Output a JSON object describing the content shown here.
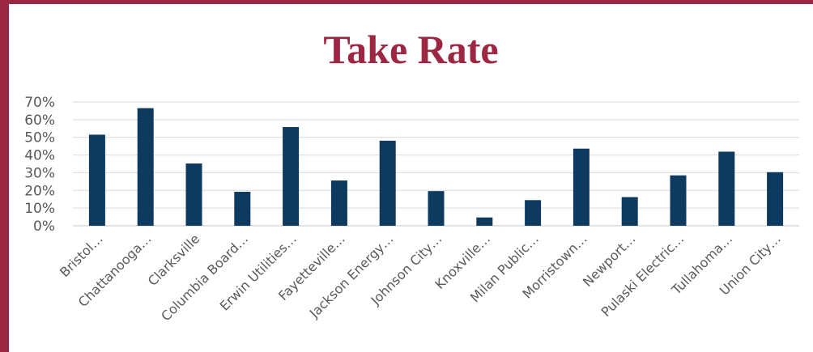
{
  "chart_data": {
    "type": "bar",
    "title": "Take Rate",
    "categories": [
      "Bristol…",
      "Chattanooga…",
      "Clarksville",
      "Columbia Board…",
      "Erwin Utilities…",
      "Fayetteville…",
      "Jackson Energy…",
      "Johnson City…",
      "Knoxville…",
      "Milan Public…",
      "Morristown…",
      "Newport…",
      "Pulaski Electric…",
      "Tullahoma…",
      "Union City…"
    ],
    "values": [
      0.515,
      0.665,
      0.352,
      0.192,
      0.558,
      0.256,
      0.481,
      0.196,
      0.047,
      0.145,
      0.436,
      0.162,
      0.285,
      0.419,
      0.303
    ],
    "ylim": [
      0,
      0.7
    ],
    "yticks": [
      "0%",
      "10%",
      "20%",
      "30%",
      "40%",
      "50%",
      "60%",
      "70%"
    ],
    "xlabel": "",
    "ylabel": "",
    "grid": true,
    "legend": "none",
    "colors": {
      "bar": "#0e3a5f",
      "title": "#9b2743",
      "frame": "#9b2743",
      "grid": "#d9d9d9",
      "text": "#595959"
    }
  }
}
